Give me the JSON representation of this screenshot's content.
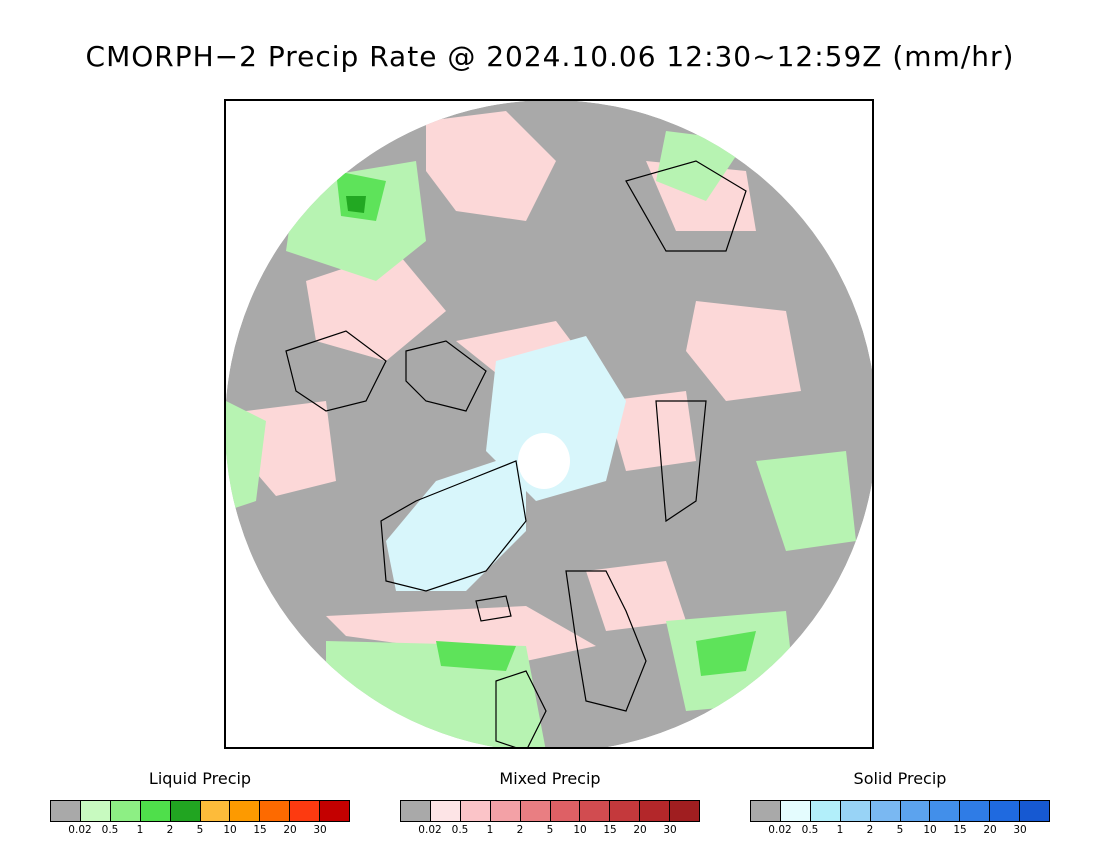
{
  "title": "CMORPH−2 Precip Rate @ 2024.10.06 12:30~12:59Z (mm/hr)",
  "map": {
    "projection": "north-polar-stereographic",
    "colors": {
      "no_precip": "#a9a9a9",
      "mixed_light": "#fcd8d8",
      "solid_light": "#d8f6fb",
      "liquid_light": "#b7f3b2",
      "liquid_mid": "#5ee35a",
      "liquid_heavy": "#22a822",
      "coastline": "#000000"
    }
  },
  "legends": [
    {
      "id": "liquid",
      "title": "Liquid Precip",
      "colors": [
        "#a9a9a9",
        "#c8fac0",
        "#8def84",
        "#4fdf4b",
        "#21a521",
        "#fdbb3a",
        "#fd9a00",
        "#fd6a00",
        "#fd3a10",
        "#c40000"
      ],
      "ticks": [
        "0.02",
        "0.5",
        "1",
        "2",
        "5",
        "10",
        "15",
        "20",
        "30"
      ]
    },
    {
      "id": "mixed",
      "title": "Mixed Precip",
      "colors": [
        "#a9a9a9",
        "#fde4e6",
        "#fbc4c8",
        "#f3a1a6",
        "#e97e82",
        "#de6065",
        "#d14c50",
        "#c4393c",
        "#b3272a",
        "#a01e20"
      ],
      "ticks": [
        "0.02",
        "0.5",
        "1",
        "2",
        "5",
        "10",
        "15",
        "20",
        "30"
      ]
    },
    {
      "id": "solid",
      "title": "Solid Precip",
      "colors": [
        "#a9a9a9",
        "#e4fcfe",
        "#b2effa",
        "#98d3f6",
        "#7ab8f2",
        "#5ca3ee",
        "#428fea",
        "#2f7ce6",
        "#1f6ae0",
        "#1659d2"
      ],
      "ticks": [
        "0.02",
        "0.5",
        "1",
        "2",
        "5",
        "10",
        "15",
        "20",
        "30"
      ]
    }
  ]
}
